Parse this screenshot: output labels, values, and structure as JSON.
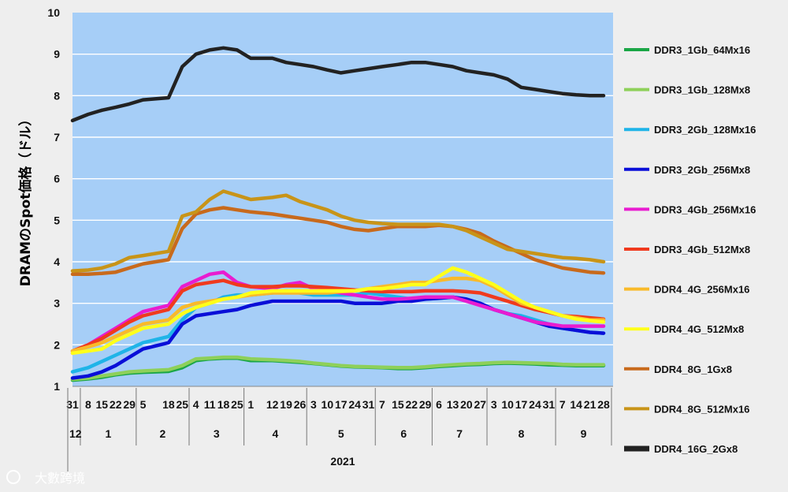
{
  "watermark": "大數跨境",
  "chart_data": {
    "type": "line",
    "title": "",
    "ylabel": "DRAMのSpot価格（ドル）",
    "ylim": [
      1,
      10
    ],
    "yticks": [
      1,
      2,
      3,
      4,
      5,
      6,
      7,
      8,
      9,
      10
    ],
    "grid": true,
    "legend_position": "right",
    "x_day_labels": [
      "31",
      "8",
      "15",
      "22",
      "29",
      "5",
      "18",
      "25",
      "4",
      "11",
      "18",
      "25",
      "1",
      "12",
      "19",
      "26",
      "3",
      "10",
      "17",
      "24",
      "31",
      "7",
      "15",
      "22",
      "29",
      "6",
      "13",
      "20",
      "27",
      "3",
      "10",
      "17",
      "24",
      "31",
      "7",
      "14",
      "21",
      "28"
    ],
    "x_month_labels": [
      "12",
      "1",
      "2",
      "3",
      "4",
      "5",
      "6",
      "7",
      "8",
      "9"
    ],
    "x_year_label": "2021",
    "x": [
      "2020-12-31",
      "2021-01-08",
      "2021-01-15",
      "2021-01-22",
      "2021-01-29",
      "2021-02-05",
      "2021-02-18",
      "2021-02-25",
      "2021-03-04",
      "2021-03-11",
      "2021-03-18",
      "2021-03-25",
      "2021-04-01",
      "2021-04-12",
      "2021-04-19",
      "2021-04-26",
      "2021-05-03",
      "2021-05-10",
      "2021-05-17",
      "2021-05-24",
      "2021-05-31",
      "2021-06-07",
      "2021-06-15",
      "2021-06-22",
      "2021-06-29",
      "2021-07-06",
      "2021-07-13",
      "2021-07-20",
      "2021-07-27",
      "2021-08-03",
      "2021-08-10",
      "2021-08-17",
      "2021-08-24",
      "2021-08-31",
      "2021-09-07",
      "2021-09-14",
      "2021-09-21",
      "2021-09-28"
    ],
    "series": [
      {
        "name": "DDR3_1Gb_64Mx16",
        "color": "#1aa646",
        "values": [
          1.15,
          1.18,
          1.22,
          1.28,
          1.32,
          1.34,
          1.36,
          1.45,
          1.62,
          1.66,
          1.68,
          1.68,
          1.62,
          1.62,
          1.6,
          1.58,
          1.55,
          1.52,
          1.49,
          1.47,
          1.46,
          1.45,
          1.43,
          1.43,
          1.45,
          1.48,
          1.5,
          1.52,
          1.53,
          1.55,
          1.56,
          1.55,
          1.54,
          1.52,
          1.51,
          1.5,
          1.5,
          1.5
        ]
      },
      {
        "name": "DDR3_1Gb_128Mx8",
        "color": "#8ed05a",
        "values": [
          1.17,
          1.2,
          1.25,
          1.3,
          1.35,
          1.37,
          1.4,
          1.5,
          1.66,
          1.68,
          1.7,
          1.7,
          1.66,
          1.64,
          1.62,
          1.6,
          1.56,
          1.53,
          1.5,
          1.48,
          1.47,
          1.46,
          1.45,
          1.45,
          1.47,
          1.5,
          1.52,
          1.54,
          1.55,
          1.57,
          1.58,
          1.57,
          1.56,
          1.55,
          1.53,
          1.52,
          1.52,
          1.52
        ]
      },
      {
        "name": "DDR3_2Gb_128Mx16",
        "color": "#1fb4e8",
        "values": [
          1.35,
          1.45,
          1.6,
          1.75,
          1.9,
          2.05,
          2.2,
          2.6,
          2.9,
          3.0,
          3.15,
          3.2,
          3.2,
          3.25,
          3.3,
          3.25,
          3.2,
          3.2,
          3.2,
          3.2,
          3.25,
          3.2,
          3.15,
          3.1,
          3.1,
          3.12,
          3.15,
          3.05,
          3.0,
          2.85,
          2.75,
          2.7,
          2.6,
          2.5,
          2.4,
          2.35,
          2.3,
          2.28
        ]
      },
      {
        "name": "DDR3_2Gb_256Mx8",
        "color": "#0a0fd8",
        "values": [
          1.2,
          1.25,
          1.35,
          1.5,
          1.7,
          1.9,
          2.05,
          2.5,
          2.7,
          2.75,
          2.8,
          2.85,
          2.95,
          3.05,
          3.05,
          3.05,
          3.05,
          3.05,
          3.05,
          3.0,
          3.0,
          3.0,
          3.05,
          3.05,
          3.1,
          3.12,
          3.15,
          3.1,
          3.0,
          2.85,
          2.75,
          2.65,
          2.55,
          2.45,
          2.4,
          2.35,
          2.3,
          2.28
        ]
      },
      {
        "name": "DDR3_4Gb_256Mx16",
        "color": "#e81cd0",
        "values": [
          1.8,
          2.0,
          2.2,
          2.4,
          2.6,
          2.8,
          2.95,
          3.4,
          3.55,
          3.7,
          3.75,
          3.5,
          3.4,
          3.35,
          3.45,
          3.5,
          3.35,
          3.3,
          3.25,
          3.2,
          3.15,
          3.1,
          3.1,
          3.12,
          3.15,
          3.15,
          3.15,
          3.05,
          2.95,
          2.85,
          2.75,
          2.65,
          2.55,
          2.5,
          2.45,
          2.45,
          2.45,
          2.45
        ]
      },
      {
        "name": "DDR3_4Gb_512Mx8",
        "color": "#f03a1e",
        "values": [
          1.85,
          2.0,
          2.15,
          2.35,
          2.55,
          2.7,
          2.85,
          3.3,
          3.45,
          3.5,
          3.55,
          3.45,
          3.4,
          3.4,
          3.42,
          3.42,
          3.4,
          3.38,
          3.35,
          3.32,
          3.3,
          3.28,
          3.28,
          3.28,
          3.3,
          3.3,
          3.3,
          3.28,
          3.25,
          3.15,
          3.05,
          2.95,
          2.85,
          2.78,
          2.7,
          2.68,
          2.65,
          2.62
        ]
      },
      {
        "name": "DDR4_4G_256Mx16",
        "color": "#f9ba2a",
        "values": [
          1.85,
          1.95,
          2.05,
          2.2,
          2.35,
          2.5,
          2.6,
          2.9,
          3.0,
          3.05,
          3.1,
          3.15,
          3.2,
          3.25,
          3.25,
          3.25,
          3.25,
          3.25,
          3.28,
          3.3,
          3.35,
          3.4,
          3.45,
          3.5,
          3.5,
          3.55,
          3.6,
          3.6,
          3.55,
          3.4,
          3.2,
          3.0,
          2.9,
          2.8,
          2.7,
          2.65,
          2.6,
          2.6
        ]
      },
      {
        "name": "DDR4_4G_512Mx8",
        "color": "#ffff1a",
        "values": [
          1.8,
          1.85,
          1.9,
          2.1,
          2.25,
          2.4,
          2.5,
          2.75,
          2.9,
          3.0,
          3.1,
          3.15,
          3.25,
          3.3,
          3.3,
          3.3,
          3.3,
          3.3,
          3.3,
          3.3,
          3.35,
          3.35,
          3.4,
          3.45,
          3.45,
          3.65,
          3.85,
          3.75,
          3.6,
          3.45,
          3.25,
          3.05,
          2.9,
          2.8,
          2.7,
          2.62,
          2.58,
          2.55
        ]
      },
      {
        "name": "DDR4_8G_1Gx8",
        "color": "#c86a1c",
        "values": [
          3.7,
          3.7,
          3.72,
          3.75,
          3.85,
          3.95,
          4.05,
          4.8,
          5.15,
          5.25,
          5.3,
          5.25,
          5.2,
          5.15,
          5.1,
          5.05,
          5.0,
          4.95,
          4.85,
          4.78,
          4.75,
          4.8,
          4.85,
          4.85,
          4.85,
          4.88,
          4.85,
          4.78,
          4.68,
          4.5,
          4.35,
          4.2,
          4.05,
          3.95,
          3.85,
          3.8,
          3.75,
          3.73
        ]
      },
      {
        "name": "DDR4_8G_512Mx16",
        "color": "#c89418",
        "values": [
          3.78,
          3.8,
          3.85,
          3.95,
          4.1,
          4.15,
          4.25,
          5.1,
          5.2,
          5.5,
          5.7,
          5.6,
          5.5,
          5.55,
          5.6,
          5.45,
          5.35,
          5.25,
          5.1,
          5.0,
          4.95,
          4.92,
          4.9,
          4.9,
          4.9,
          4.9,
          4.85,
          4.75,
          4.6,
          4.45,
          4.3,
          4.25,
          4.2,
          4.15,
          4.1,
          4.08,
          4.05,
          4.0
        ]
      },
      {
        "name": "DDR4_16G_2Gx8",
        "color": "#222222",
        "values": [
          7.4,
          7.55,
          7.65,
          7.72,
          7.8,
          7.9,
          7.95,
          8.7,
          9.0,
          9.1,
          9.15,
          9.1,
          8.9,
          8.9,
          8.8,
          8.75,
          8.7,
          8.62,
          8.55,
          8.6,
          8.65,
          8.7,
          8.75,
          8.8,
          8.8,
          8.75,
          8.7,
          8.6,
          8.55,
          8.5,
          8.4,
          8.2,
          8.15,
          8.1,
          8.05,
          8.02,
          8.0,
          8.0
        ]
      }
    ]
  }
}
